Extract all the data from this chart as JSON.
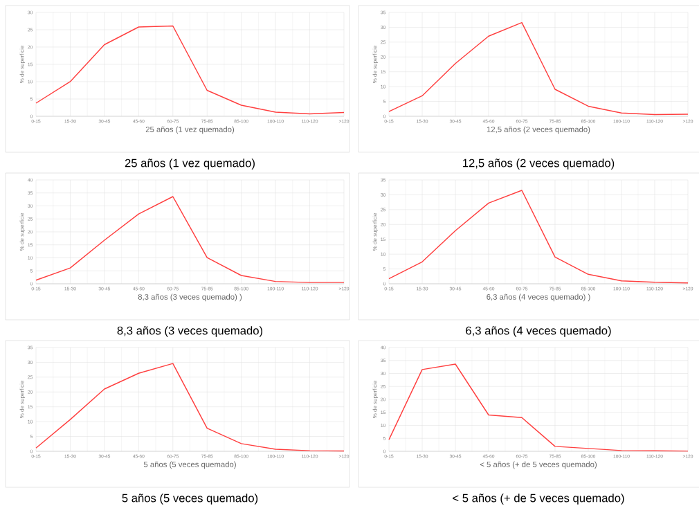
{
  "chart_data": [
    {
      "type": "line",
      "xlabel": "25 años (1 vez quemado)",
      "ylabel": "% de superficie",
      "annotations": [
        "25 años (1 vez quemado)"
      ],
      "categories": [
        "0-15",
        "15-30",
        "30-45",
        "45-60",
        "60-75",
        "75-85",
        "85-100",
        "100-110",
        "110-120",
        ">120"
      ],
      "color": "#ff4040",
      "values": [
        3.8,
        10,
        20.7,
        25.8,
        26.1,
        7.5,
        3.2,
        1.2,
        0.7,
        1.1
      ],
      "ylim": [
        0,
        30
      ],
      "yticks": [
        0,
        5,
        10,
        15,
        20,
        25,
        30
      ],
      "grid": true,
      "marker": "none"
    },
    {
      "type": "line",
      "xlabel": "12,5 años (2 veces quemado)",
      "ylabel": "% de superficie",
      "annotations": [
        "12,5 años (2 veces quemado)"
      ],
      "categories": [
        "0-15",
        "15-30",
        "30-45",
        "45-60",
        "60-75",
        "75-85",
        "85-100",
        "100-110",
        "110-120",
        ">120"
      ],
      "color": "#ff4040",
      "values": [
        1.6,
        6.9,
        17.8,
        27,
        31.6,
        9.1,
        3.4,
        1.1,
        0.6,
        0.7
      ],
      "ylim": [
        0,
        35
      ],
      "yticks": [
        0,
        5,
        10,
        15,
        20,
        25,
        30,
        35
      ],
      "grid": true,
      "marker": "none"
    },
    {
      "type": "line",
      "xlabel": "8,3 años (3 veces quemado) )",
      "ylabel": "% de superficie",
      "annotations": [
        "8,3 años (3 veces quemado)"
      ],
      "categories": [
        "0-15",
        "15-30",
        "30-45",
        "45-60",
        "60-75",
        "75-85",
        "85-100",
        "100-110",
        "110-120",
        ">120"
      ],
      "color": "#ff4040",
      "values": [
        1.4,
        6.1,
        16.8,
        26.9,
        33.6,
        10.1,
        3.2,
        0.9,
        0.5,
        0.5
      ],
      "ylim": [
        0,
        40
      ],
      "yticks": [
        0,
        5,
        10,
        15,
        20,
        25,
        30,
        35,
        40
      ],
      "grid": true,
      "marker": "none"
    },
    {
      "type": "line",
      "xlabel": "6,3 años (4 veces quemado) )",
      "ylabel": "% de superficie",
      "annotations": [
        "6,3 años (4 veces quemado)"
      ],
      "categories": [
        "0-15",
        "15-30",
        "30-45",
        "45-60",
        "60-75",
        "75-85",
        "85-100",
        "100-110",
        "110-120",
        ">120"
      ],
      "color": "#ff4040",
      "values": [
        1.7,
        7.4,
        17.9,
        27.2,
        31.5,
        9,
        3.2,
        1,
        0.5,
        0.3
      ],
      "ylim": [
        0,
        35
      ],
      "yticks": [
        0,
        5,
        10,
        15,
        20,
        25,
        30,
        35
      ],
      "grid": true,
      "marker": "none"
    },
    {
      "type": "line",
      "xlabel": "5 años (5 veces quemado)",
      "ylabel": "% de superficie",
      "annotations": [
        "5 años (5 veces quemado)"
      ],
      "categories": [
        "0-15",
        "15-30",
        "30-45",
        "45-60",
        "60-75",
        "75-85",
        "85-100",
        "100-110",
        "110-120",
        ">120"
      ],
      "color": "#ff4040",
      "values": [
        1.1,
        10.7,
        21,
        26.3,
        29.6,
        7.8,
        2.6,
        0.7,
        0.2,
        0.1
      ],
      "ylim": [
        0,
        35
      ],
      "yticks": [
        0,
        5,
        10,
        15,
        20,
        25,
        30,
        35
      ],
      "grid": true,
      "marker": "none"
    },
    {
      "type": "line",
      "xlabel": "< 5 años (+ de 5 veces quemado)",
      "ylabel": "% de superficie",
      "annotations": [
        "< 5 años (+ de 5 veces quemado)"
      ],
      "categories": [
        "0-15",
        "15-30",
        "30-45",
        "45-60",
        "60-75",
        "75-85",
        "85-100",
        "100-110",
        "110-120",
        ">120"
      ],
      "color": "#ff4040",
      "values": [
        4.5,
        31.5,
        33.6,
        14,
        13,
        1.9,
        1.1,
        0.3,
        0.2,
        0.1
      ],
      "ylim": [
        0,
        40
      ],
      "yticks": [
        0,
        5,
        10,
        15,
        20,
        25,
        30,
        35,
        40
      ],
      "grid": true,
      "marker": "none"
    }
  ]
}
